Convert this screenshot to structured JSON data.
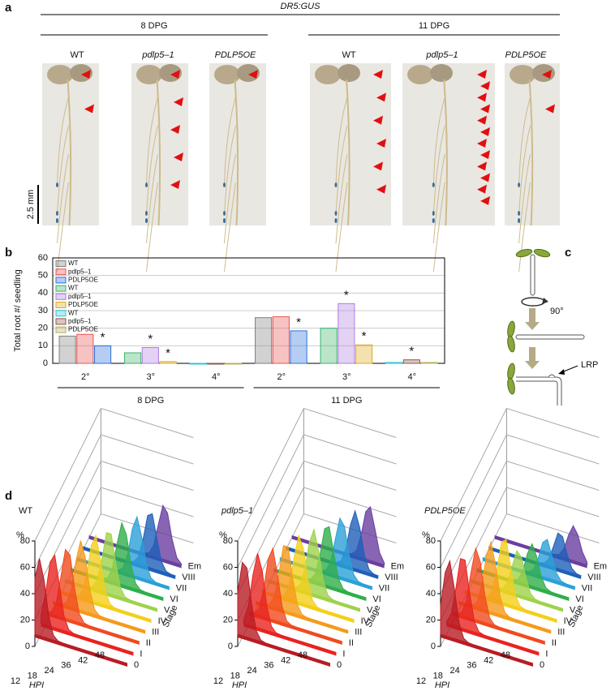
{
  "panel_a": {
    "label": "a",
    "title": "DR5:GUS",
    "groups": [
      "8 DPG",
      "11 DPG"
    ],
    "genotypes": [
      "WT",
      "pdlp5–1",
      "PDLP5OE"
    ],
    "scale_bar": "2.5 mm"
  },
  "chart_data": {
    "type": "bar",
    "panel_label": "b",
    "y_label": "Total root #/ seedling",
    "categories": [
      "2°",
      "3°",
      "4°",
      "2°",
      "3°",
      "4°"
    ],
    "groups": [
      "8 DPG",
      "11 DPG"
    ],
    "ylim": [
      0,
      60
    ],
    "yticks": [
      0,
      10,
      20,
      30,
      40,
      50,
      60
    ],
    "grid": true,
    "series": [
      {
        "name": "WT",
        "color": "#7f7f7f",
        "values": [
          15.5,
          null,
          null,
          26,
          null,
          null
        ],
        "annotations": [
          null,
          null,
          null,
          null,
          null,
          null
        ]
      },
      {
        "name": "pdlp5–1",
        "color": "#e8534f",
        "values": [
          16.5,
          null,
          null,
          26.5,
          null,
          null
        ],
        "annotations": [
          null,
          null,
          null,
          null,
          null,
          null
        ]
      },
      {
        "name": "PDLP5OE",
        "color": "#2f6fdc",
        "values": [
          10,
          null,
          null,
          18.5,
          null,
          null
        ],
        "annotations": [
          "*",
          null,
          null,
          "*",
          null,
          null
        ]
      },
      {
        "name": "WT",
        "color": "#3bb36b",
        "values": [
          null,
          6,
          null,
          null,
          20,
          null
        ],
        "annotations": [
          null,
          null,
          null,
          null,
          null,
          null
        ]
      },
      {
        "name": "pdlp5–1",
        "color": "#b07de0",
        "values": [
          null,
          9,
          null,
          null,
          34,
          null
        ],
        "annotations": [
          null,
          "*",
          null,
          null,
          "*",
          null
        ]
      },
      {
        "name": "PDLP5OE",
        "color": "#e0a81e",
        "values": [
          null,
          1,
          null,
          null,
          10.5,
          null
        ],
        "annotations": [
          null,
          "*",
          null,
          null,
          "*",
          null
        ]
      },
      {
        "name": "WT",
        "color": "#2ec6d6",
        "values": [
          null,
          null,
          0,
          null,
          null,
          0.5
        ],
        "annotations": [
          null,
          null,
          null,
          null,
          null,
          null
        ]
      },
      {
        "name": "pdlp5–1",
        "color": "#8b5a4a",
        "values": [
          null,
          null,
          0,
          null,
          null,
          2
        ],
        "annotations": [
          null,
          null,
          null,
          null,
          null,
          "*"
        ]
      },
      {
        "name": "PDLP5OE",
        "color": "#b8b060",
        "values": [
          null,
          null,
          0,
          null,
          null,
          0.5
        ],
        "annotations": [
          null,
          null,
          null,
          null,
          null,
          null
        ]
      }
    ]
  },
  "panel_c": {
    "label": "c",
    "angle": "90°",
    "annotation": "LRP"
  },
  "panel_d": {
    "label": "d",
    "titles": [
      "WT",
      "pdlp5–1",
      "PDLP5OE"
    ],
    "y_label": "%",
    "ylim": [
      0,
      80
    ],
    "yticks": [
      0,
      20,
      40,
      60,
      80
    ],
    "x_label": "HPI",
    "hpi": [
      12,
      18,
      24,
      36,
      42,
      48
    ],
    "stage_label": "Stage",
    "stages": [
      "0",
      "I",
      "II",
      "III",
      "IV",
      "V",
      "VI",
      "VII",
      "VIII",
      "Em"
    ]
  }
}
